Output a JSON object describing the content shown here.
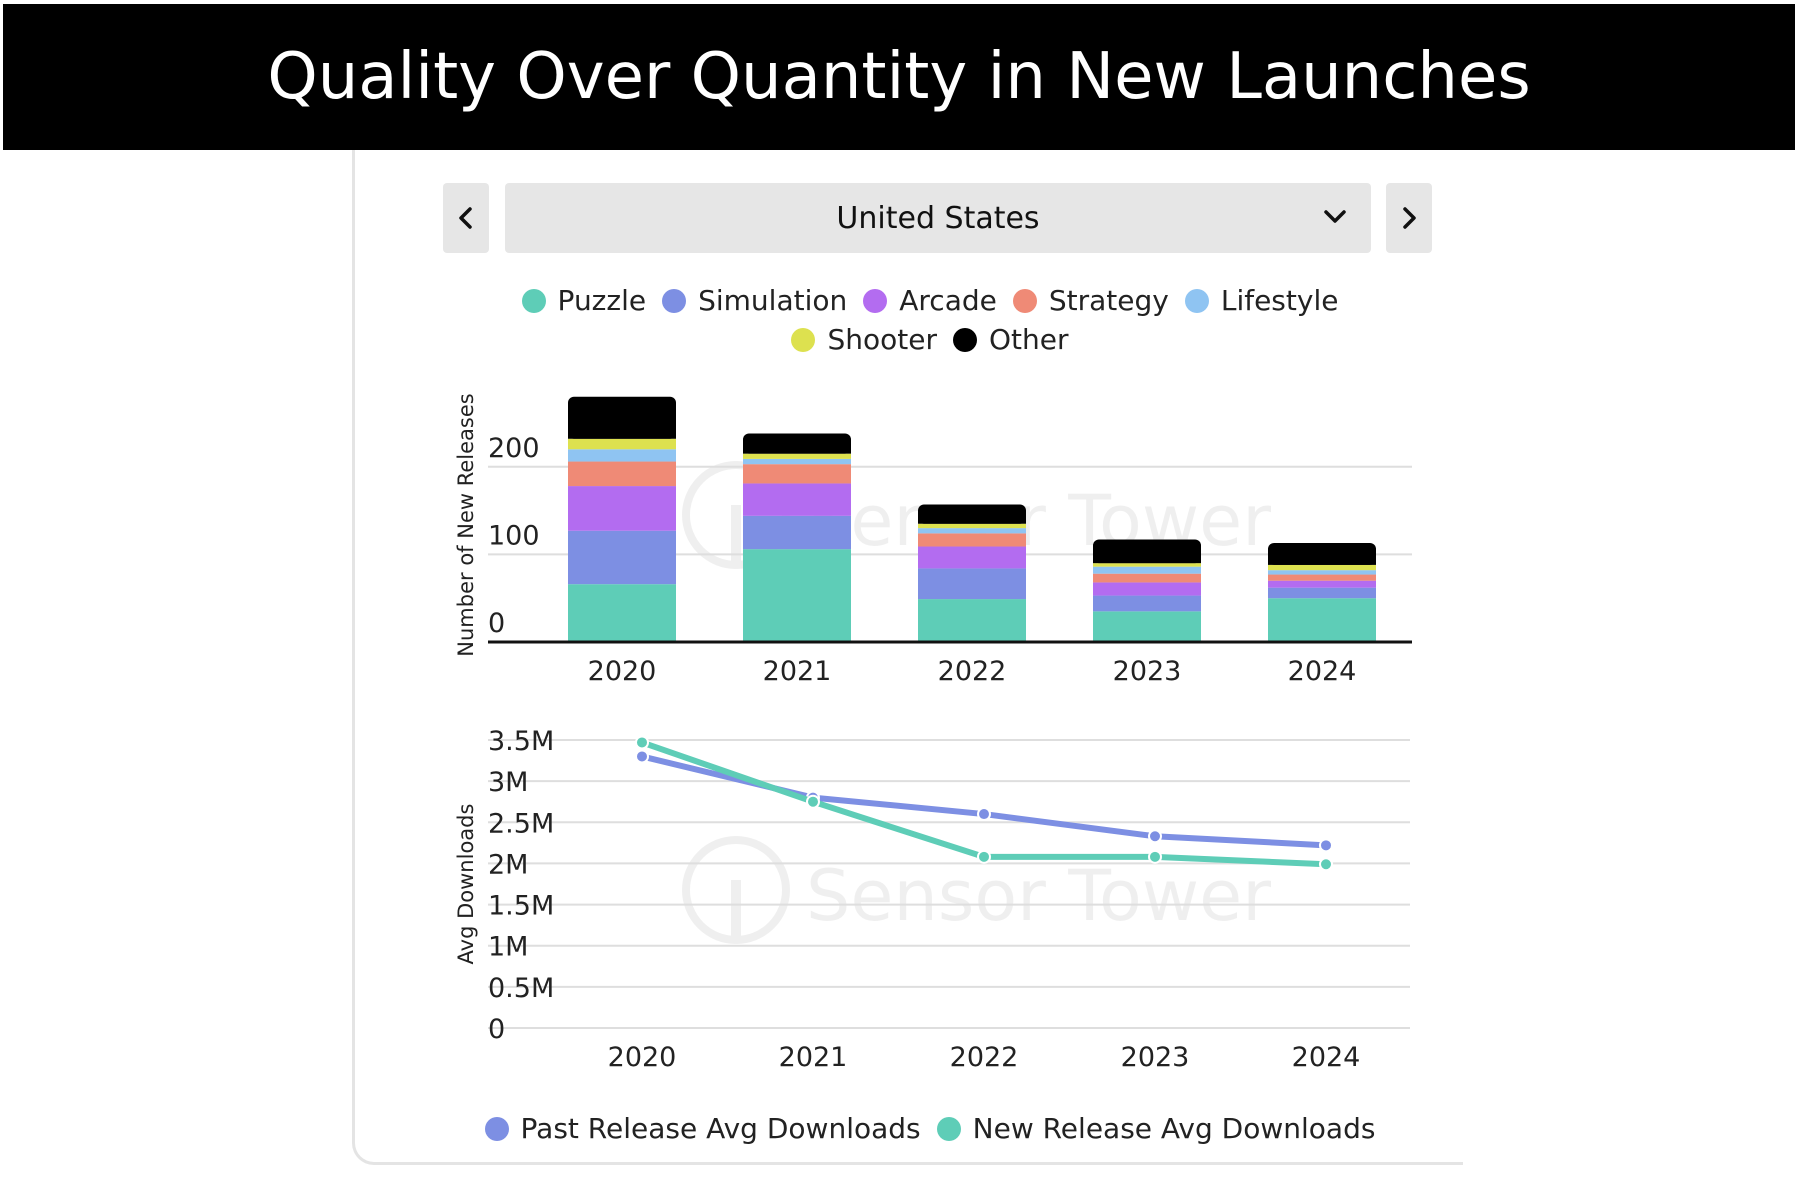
{
  "page_title": "Quality Over Quantity in New Launches",
  "country_selector": {
    "value": "United States",
    "prev_icon": "chevron-left-icon",
    "next_icon": "chevron-right-icon",
    "dropdown_icon": "chevron-down-icon"
  },
  "watermark": "Sensor Tower",
  "chart_data": [
    {
      "type": "bar",
      "stacked": true,
      "categories": [
        "2020",
        "2021",
        "2022",
        "2023",
        "2024"
      ],
      "ylabel": "Number of New Releases",
      "ylim": [
        0,
        280
      ],
      "yticks": [
        0,
        100,
        200
      ],
      "grid": true,
      "legend_placement": "top",
      "series": [
        {
          "name": "Puzzle",
          "color": "#5ecdb7",
          "values": [
            66,
            106,
            49,
            35,
            50
          ]
        },
        {
          "name": "Simulation",
          "color": "#7d8fe3",
          "values": [
            61,
            38,
            35,
            18,
            12
          ]
        },
        {
          "name": "Arcade",
          "color": "#b36cf0",
          "values": [
            51,
            37,
            25,
            15,
            8
          ]
        },
        {
          "name": "Strategy",
          "color": "#ef8a76",
          "values": [
            28,
            22,
            15,
            10,
            7
          ]
        },
        {
          "name": "Lifestyle",
          "color": "#8fc4f2",
          "values": [
            14,
            6,
            6,
            8,
            5
          ]
        },
        {
          "name": "Shooter",
          "color": "#dde14f",
          "values": [
            12,
            6,
            5,
            4,
            6
          ]
        },
        {
          "name": "Other",
          "color": "#000000",
          "values": [
            48,
            23,
            22,
            27,
            25
          ]
        }
      ]
    },
    {
      "type": "line",
      "x": [
        "2020",
        "2021",
        "2022",
        "2023",
        "2024"
      ],
      "ylabel": "Avg Downloads",
      "ylim": [
        0,
        3500000
      ],
      "yticks": [
        0,
        500000,
        1000000,
        1500000,
        2000000,
        2500000,
        3000000,
        3500000
      ],
      "ytick_labels": [
        "0",
        "0.5M",
        "1M",
        "1.5M",
        "2M",
        "2.5M",
        "3M",
        "3.5M"
      ],
      "grid": true,
      "legend_placement": "bottom",
      "series": [
        {
          "name": "Past Release Avg Downloads",
          "color": "#7d8fe3",
          "values": [
            3300000,
            2800000,
            2600000,
            2330000,
            2220000
          ]
        },
        {
          "name": "New Release Avg Downloads",
          "color": "#5ecdb7",
          "values": [
            3470000,
            2750000,
            2080000,
            2080000,
            1990000
          ]
        }
      ]
    }
  ]
}
